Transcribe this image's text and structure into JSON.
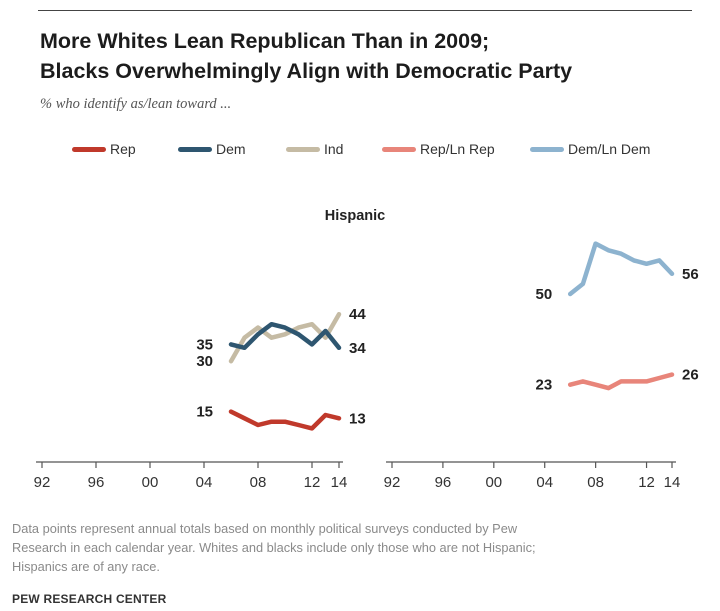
{
  "title_line1": "More Whites Lean Republican Than in 2009;",
  "title_line2": "Blacks Overwhelmingly Align with Democratic Party",
  "subtitle": "% who identify as/lean toward ...",
  "legend": [
    {
      "label": "Rep",
      "color": "#c0392b"
    },
    {
      "label": "Dem",
      "color": "#2e5670"
    },
    {
      "label": "Ind",
      "color": "#c5bba4"
    },
    {
      "label": "Rep/Ln Rep",
      "color": "#e8857a"
    },
    {
      "label": "Dem/Ln Dem",
      "color": "#8db3cf"
    }
  ],
  "note_line1": "Data points represent annual totals based on monthly political surveys conducted by Pew",
  "note_line2": "Research in each calendar year. Whites and blacks include only those who are not Hispanic;",
  "note_line3": "Hispanics are of any race.",
  "source": "PEW RESEARCH CENTER",
  "chart_data": [
    {
      "type": "line",
      "title": "Hispanic",
      "x_tick_labels": [
        "92",
        "96",
        "00",
        "04",
        "08",
        "12",
        "14"
      ],
      "x_ticks": [
        1992,
        1996,
        2000,
        2004,
        2008,
        2012,
        2014
      ],
      "xlim": [
        1992,
        2014
      ],
      "ylim": [
        0,
        75
      ],
      "grid": false,
      "legend_placement": "top",
      "x": [
        2006,
        2007,
        2008,
        2009,
        2010,
        2011,
        2012,
        2013,
        2014
      ],
      "series": [
        {
          "name": "Ind",
          "color": "#c5bba4",
          "values": [
            30,
            37,
            40,
            37,
            38,
            40,
            41,
            37,
            44
          ],
          "start_label": "30",
          "end_label": "44"
        },
        {
          "name": "Dem",
          "color": "#2e5670",
          "values": [
            35,
            34,
            38,
            41,
            40,
            38,
            35,
            39,
            34
          ],
          "start_label": "35",
          "end_label": "34"
        },
        {
          "name": "Rep",
          "color": "#c0392b",
          "values": [
            15,
            13,
            11,
            12,
            12,
            11,
            10,
            14,
            13
          ],
          "start_label": "15",
          "end_label": "13"
        }
      ]
    },
    {
      "type": "line",
      "title": "",
      "x_tick_labels": [
        "92",
        "96",
        "00",
        "04",
        "08",
        "12",
        "14"
      ],
      "x_ticks": [
        1992,
        1996,
        2000,
        2004,
        2008,
        2012,
        2014
      ],
      "xlim": [
        1992,
        2014
      ],
      "ylim": [
        0,
        75
      ],
      "grid": false,
      "x": [
        2006,
        2007,
        2008,
        2009,
        2010,
        2011,
        2012,
        2013,
        2014
      ],
      "series": [
        {
          "name": "Dem/Ln Dem",
          "color": "#8db3cf",
          "values": [
            50,
            53,
            65,
            63,
            62,
            60,
            59,
            60,
            56
          ],
          "start_label": "50",
          "end_label": "56"
        },
        {
          "name": "Rep/Ln Rep",
          "color": "#e8857a",
          "values": [
            23,
            24,
            23,
            22,
            24,
            24,
            24,
            25,
            26
          ],
          "start_label": "23",
          "end_label": "26"
        }
      ]
    }
  ]
}
